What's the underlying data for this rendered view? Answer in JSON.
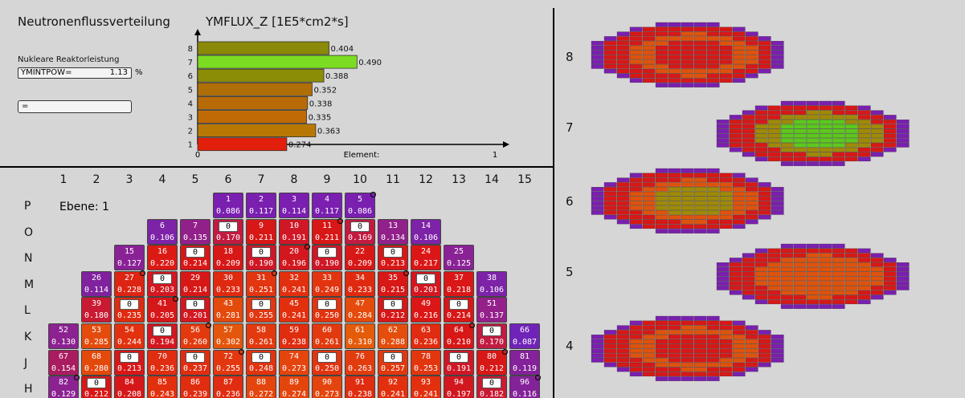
{
  "header": {
    "title": "Neutronenflussverteilung",
    "flux_title": "YMFLUX_Z [1E5*cm2*s]"
  },
  "power": {
    "label": "Nukleare Reaktorleistung",
    "name": "YMINTPOW=",
    "value": "1.13",
    "unit": "%"
  },
  "eq_field": "=",
  "chart_data": {
    "type": "bar",
    "orientation": "horizontal",
    "categories": [
      "1",
      "2",
      "3",
      "4",
      "5",
      "6",
      "7",
      "8"
    ],
    "values": [
      0.274,
      0.363,
      0.335,
      0.338,
      0.352,
      0.388,
      0.49,
      0.404
    ],
    "value_labels": [
      "0.274",
      "0.363",
      "0.335",
      "0.338",
      "0.352",
      "0.388",
      "0.490",
      "0.404"
    ],
    "colors": [
      "#e21f0a",
      "#b87806",
      "#c06a06",
      "#b76a06",
      "#b06f06",
      "#8c8d06",
      "#7cdc22",
      "#8a8a08"
    ],
    "xlabel": "Element:",
    "x_ticks": [
      "0",
      "1"
    ],
    "xlim": [
      0,
      0.85
    ]
  },
  "core": {
    "ebene": "Ebene: 1",
    "columns": [
      "1",
      "2",
      "3",
      "4",
      "5",
      "6",
      "7",
      "8",
      "9",
      "10",
      "11",
      "12",
      "13",
      "14",
      "15"
    ],
    "row_labels": [
      "P",
      "O",
      "N",
      "M",
      "L",
      "K",
      "J",
      "H"
    ],
    "rows": [
      {
        "row": "P",
        "cells": [
          {
            "col": 6,
            "id": "1",
            "v": "0.086",
            "c": "#7a1fb0"
          },
          {
            "col": 7,
            "id": "2",
            "v": "0.117",
            "c": "#7a1fb0"
          },
          {
            "col": 8,
            "id": "3",
            "v": "0.114",
            "c": "#7a1fb0"
          },
          {
            "col": 9,
            "id": "4",
            "v": "0.117",
            "c": "#7a1fb0"
          },
          {
            "col": 10,
            "id": "5",
            "v": "0.086",
            "c": "#7a1fb0",
            "dot": true
          }
        ]
      },
      {
        "row": "O",
        "cells": [
          {
            "col": 4,
            "id": "6",
            "v": "0.106",
            "c": "#7d23a8"
          },
          {
            "col": 5,
            "id": "7",
            "v": "0.135",
            "c": "#92208a"
          },
          {
            "col": 6,
            "id": "0",
            "v": "0.170",
            "c": "#c21a40",
            "white": true
          },
          {
            "col": 7,
            "id": "9",
            "v": "0.211",
            "c": "#d81717"
          },
          {
            "col": 8,
            "id": "10",
            "v": "0.191",
            "c": "#d01726"
          },
          {
            "col": 9,
            "id": "11",
            "v": "0.211",
            "c": "#d81717",
            "dot": true
          },
          {
            "col": 10,
            "id": "0",
            "v": "0.169",
            "c": "#c21a40",
            "white": true
          },
          {
            "col": 11,
            "id": "13",
            "v": "0.134",
            "c": "#92208a"
          },
          {
            "col": 12,
            "id": "14",
            "v": "0.106",
            "c": "#7d23a8"
          }
        ]
      },
      {
        "row": "N",
        "cells": [
          {
            "col": 3,
            "id": "15",
            "v": "0.127",
            "c": "#8a2296"
          },
          {
            "col": 4,
            "id": "16",
            "v": "0.220",
            "c": "#dc1a14"
          },
          {
            "col": 5,
            "id": "0",
            "v": "0.214",
            "c": "#d81717",
            "white": true
          },
          {
            "col": 6,
            "id": "18",
            "v": "0.209",
            "c": "#d81717"
          },
          {
            "col": 7,
            "id": "0",
            "v": "0.190",
            "c": "#d01726",
            "white": true
          },
          {
            "col": 8,
            "id": "20",
            "v": "0.196",
            "c": "#d2171f",
            "dot": true
          },
          {
            "col": 9,
            "id": "0",
            "v": "0.190",
            "c": "#d01726",
            "white": true
          },
          {
            "col": 10,
            "id": "22",
            "v": "0.209",
            "c": "#d81717"
          },
          {
            "col": 11,
            "id": "0",
            "v": "0.213",
            "c": "#d81717",
            "white": true
          },
          {
            "col": 12,
            "id": "24",
            "v": "0.217",
            "c": "#da1716"
          },
          {
            "col": 13,
            "id": "25",
            "v": "0.125",
            "c": "#8a2296"
          }
        ]
      },
      {
        "row": "M",
        "cells": [
          {
            "col": 2,
            "id": "26",
            "v": "0.114",
            "c": "#80229e"
          },
          {
            "col": 3,
            "id": "27",
            "v": "0.228",
            "c": "#de2412",
            "dot": true
          },
          {
            "col": 4,
            "id": "0",
            "v": "0.203",
            "c": "#d41720",
            "white": true
          },
          {
            "col": 5,
            "id": "29",
            "v": "0.214",
            "c": "#d81717"
          },
          {
            "col": 6,
            "id": "30",
            "v": "0.233",
            "c": "#e02a10"
          },
          {
            "col": 7,
            "id": "31",
            "v": "0.251",
            "c": "#e23510",
            "dot": true
          },
          {
            "col": 8,
            "id": "32",
            "v": "0.241",
            "c": "#e2300f"
          },
          {
            "col": 9,
            "id": "33",
            "v": "0.249",
            "c": "#e2340f"
          },
          {
            "col": 10,
            "id": "34",
            "v": "0.233",
            "c": "#e02a10"
          },
          {
            "col": 11,
            "id": "35",
            "v": "0.215",
            "c": "#d81717",
            "dot": true
          },
          {
            "col": 12,
            "id": "0",
            "v": "0.201",
            "c": "#d41720",
            "white": true
          },
          {
            "col": 13,
            "id": "37",
            "v": "0.218",
            "c": "#da1716"
          },
          {
            "col": 14,
            "id": "38",
            "v": "0.106",
            "c": "#7d23a8"
          }
        ]
      },
      {
        "row": "L",
        "cells": [
          {
            "col": 2,
            "id": "39",
            "v": "0.180",
            "c": "#c81a32"
          },
          {
            "col": 3,
            "id": "0",
            "v": "0.235",
            "c": "#e02b10",
            "white": true
          },
          {
            "col": 4,
            "id": "41",
            "v": "0.205",
            "c": "#d61719",
            "dot": true
          },
          {
            "col": 5,
            "id": "0",
            "v": "0.201",
            "c": "#d41720",
            "white": true
          },
          {
            "col": 6,
            "id": "43",
            "v": "0.281",
            "c": "#e44a0c"
          },
          {
            "col": 7,
            "id": "0",
            "v": "0.255",
            "c": "#e2370f",
            "white": true
          },
          {
            "col": 8,
            "id": "45",
            "v": "0.241",
            "c": "#e2300f"
          },
          {
            "col": 9,
            "id": "0",
            "v": "0.250",
            "c": "#e2340f",
            "white": true
          },
          {
            "col": 10,
            "id": "47",
            "v": "0.284",
            "c": "#e44b0c"
          },
          {
            "col": 11,
            "id": "0",
            "v": "0.212",
            "c": "#d81717",
            "white": true
          },
          {
            "col": 12,
            "id": "49",
            "v": "0.216",
            "c": "#da1716"
          },
          {
            "col": 13,
            "id": "0",
            "v": "0.214",
            "c": "#d81717",
            "white": true
          },
          {
            "col": 14,
            "id": "51",
            "v": "0.137",
            "c": "#94208a"
          }
        ]
      },
      {
        "row": "K",
        "cells": [
          {
            "col": 1,
            "id": "52",
            "v": "0.130",
            "c": "#8c2292"
          },
          {
            "col": 2,
            "id": "53",
            "v": "0.285",
            "c": "#e44b0c"
          },
          {
            "col": 3,
            "id": "54",
            "v": "0.244",
            "c": "#e2310f"
          },
          {
            "col": 4,
            "id": "0",
            "v": "0.194",
            "c": "#d2171f",
            "white": true
          },
          {
            "col": 5,
            "id": "56",
            "v": "0.260",
            "c": "#e23a0e",
            "dot": true
          },
          {
            "col": 6,
            "id": "57",
            "v": "0.302",
            "c": "#e4560b"
          },
          {
            "col": 7,
            "id": "58",
            "v": "0.261",
            "c": "#e23a0e"
          },
          {
            "col": 8,
            "id": "59",
            "v": "0.238",
            "c": "#e02d10"
          },
          {
            "col": 9,
            "id": "60",
            "v": "0.261",
            "c": "#e23a0e"
          },
          {
            "col": 10,
            "id": "61",
            "v": "0.310",
            "c": "#e45b0a"
          },
          {
            "col": 11,
            "id": "62",
            "v": "0.288",
            "c": "#e44d0c"
          },
          {
            "col": 12,
            "id": "63",
            "v": "0.236",
            "c": "#e02c10"
          },
          {
            "col": 13,
            "id": "64",
            "v": "0.210",
            "c": "#d81717",
            "dot": true
          },
          {
            "col": 14,
            "id": "0",
            "v": "0.170",
            "c": "#c21a40",
            "white": true
          },
          {
            "col": 15,
            "id": "66",
            "v": "0.087",
            "c": "#7023b8"
          }
        ]
      },
      {
        "row": "J",
        "cells": [
          {
            "col": 1,
            "id": "67",
            "v": "0.154",
            "c": "#aa1c60"
          },
          {
            "col": 2,
            "id": "68",
            "v": "0.280",
            "c": "#e4490c"
          },
          {
            "col": 3,
            "id": "0",
            "v": "0.213",
            "c": "#d81717",
            "white": true
          },
          {
            "col": 4,
            "id": "70",
            "v": "0.236",
            "c": "#e02c10"
          },
          {
            "col": 5,
            "id": "0",
            "v": "0.237",
            "c": "#e02d10",
            "white": true
          },
          {
            "col": 6,
            "id": "72",
            "v": "0.255",
            "c": "#e2370f",
            "dot": true
          },
          {
            "col": 7,
            "id": "0",
            "v": "0.248",
            "c": "#e2330f",
            "white": true
          },
          {
            "col": 8,
            "id": "74",
            "v": "0.273",
            "c": "#e4440d"
          },
          {
            "col": 9,
            "id": "0",
            "v": "0.250",
            "c": "#e2340f",
            "white": true
          },
          {
            "col": 10,
            "id": "76",
            "v": "0.263",
            "c": "#e23c0e"
          },
          {
            "col": 11,
            "id": "0",
            "v": "0.257",
            "c": "#e2380f",
            "white": true
          },
          {
            "col": 12,
            "id": "78",
            "v": "0.253",
            "c": "#e2360f"
          },
          {
            "col": 13,
            "id": "0",
            "v": "0.191",
            "c": "#d01726",
            "white": true
          },
          {
            "col": 14,
            "id": "80",
            "v": "0.212",
            "c": "#d81717",
            "dot": true
          },
          {
            "col": 15,
            "id": "81",
            "v": "0.119",
            "c": "#84229a"
          }
        ]
      },
      {
        "row": "H",
        "cells": [
          {
            "col": 1,
            "id": "82",
            "v": "0.129",
            "c": "#8c2292",
            "dot": true
          },
          {
            "col": 2,
            "id": "0",
            "v": "0.212",
            "c": "#d81717",
            "white": true
          },
          {
            "col": 3,
            "id": "84",
            "v": "0.208",
            "c": "#d61719"
          },
          {
            "col": 4,
            "id": "85",
            "v": "0.243",
            "c": "#e2300f"
          },
          {
            "col": 5,
            "id": "86",
            "v": "0.239",
            "c": "#e02d10"
          },
          {
            "col": 6,
            "id": "87",
            "v": "0.236",
            "c": "#e02c10"
          },
          {
            "col": 7,
            "id": "88",
            "v": "0.272",
            "c": "#e4440d"
          },
          {
            "col": 8,
            "id": "89",
            "v": "0.274",
            "c": "#e4450d"
          },
          {
            "col": 9,
            "id": "90",
            "v": "0.273",
            "c": "#e4440d"
          },
          {
            "col": 10,
            "id": "91",
            "v": "0.238",
            "c": "#e02d10"
          },
          {
            "col": 11,
            "id": "92",
            "v": "0.241",
            "c": "#e2300f"
          },
          {
            "col": 12,
            "id": "93",
            "v": "0.241",
            "c": "#e2300f"
          },
          {
            "col": 13,
            "id": "94",
            "v": "0.197",
            "c": "#d2171f"
          },
          {
            "col": 14,
            "id": "0",
            "v": "0.182",
            "c": "#c81a32",
            "white": true
          },
          {
            "col": 15,
            "id": "96",
            "v": "0.116",
            "c": "#84229a",
            "dot": true
          }
        ]
      }
    ]
  },
  "planes": {
    "labels": [
      "8",
      "7",
      "6",
      "5",
      "4"
    ],
    "colors": {
      "purple": "#7a1fb0",
      "red": "#d81717",
      "orange": "#e0520c",
      "olive": "#a08a06",
      "green": "#5cc81c"
    }
  }
}
